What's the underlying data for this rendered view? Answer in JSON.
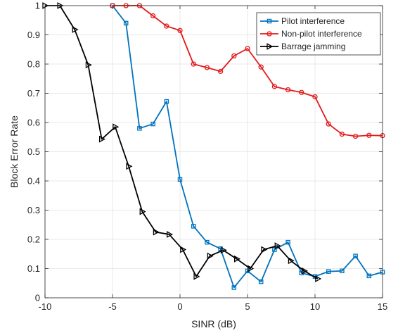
{
  "chart_data": {
    "type": "line",
    "title": "",
    "xlabel": "SINR (dB)",
    "ylabel": "Block Error Rate",
    "xlim": [
      -10,
      15
    ],
    "ylim": [
      0,
      1
    ],
    "xticks": [
      -10,
      -5,
      0,
      5,
      10,
      15
    ],
    "yticks": [
      0,
      0.1,
      0.2,
      0.3,
      0.4,
      0.5,
      0.6,
      0.7,
      0.8,
      0.9,
      1
    ],
    "grid": true,
    "legend_position": "top-right",
    "series": [
      {
        "name": "Pilot interference",
        "color": "#0072BD",
        "marker": "square",
        "points": [
          [
            -5,
            1
          ],
          [
            -4,
            0.94
          ],
          [
            -3,
            0.58
          ],
          [
            -2,
            0.595
          ],
          [
            -1,
            0.672
          ],
          [
            0,
            0.405
          ],
          [
            1,
            0.245
          ],
          [
            2,
            0.19
          ],
          [
            3,
            0.168
          ],
          [
            4,
            0.035
          ],
          [
            5,
            0.092
          ],
          [
            6,
            0.055
          ],
          [
            7,
            0.165
          ],
          [
            8,
            0.19
          ],
          [
            9,
            0.085
          ],
          [
            10,
            0.073
          ],
          [
            11,
            0.09
          ],
          [
            12,
            0.092
          ],
          [
            13,
            0.143
          ],
          [
            14,
            0.075
          ],
          [
            15,
            0.088
          ]
        ]
      },
      {
        "name": "Non-pilot interference",
        "color": "#E31A1C",
        "marker": "circle",
        "points": [
          [
            -5,
            1
          ],
          [
            -4,
            1
          ],
          [
            -3,
            1
          ],
          [
            -2,
            0.965
          ],
          [
            -1,
            0.93
          ],
          [
            0,
            0.915
          ],
          [
            1,
            0.8
          ],
          [
            2,
            0.788
          ],
          [
            3,
            0.775
          ],
          [
            4,
            0.828
          ],
          [
            5,
            0.853
          ],
          [
            6,
            0.79
          ],
          [
            7,
            0.723
          ],
          [
            8,
            0.712
          ],
          [
            9,
            0.703
          ],
          [
            10,
            0.688
          ],
          [
            11,
            0.595
          ],
          [
            12,
            0.56
          ],
          [
            13,
            0.553
          ],
          [
            14,
            0.556
          ],
          [
            15,
            0.555
          ]
        ]
      },
      {
        "name": "Barrage jamming",
        "color": "#000000",
        "marker": "triangle-right",
        "points": [
          [
            -10,
            1
          ],
          [
            -8.9,
            1
          ],
          [
            -7.8,
            0.918
          ],
          [
            -6.8,
            0.797
          ],
          [
            -5.8,
            0.543
          ],
          [
            -4.8,
            0.585
          ],
          [
            -3.8,
            0.45
          ],
          [
            -2.8,
            0.295
          ],
          [
            -1.8,
            0.225
          ],
          [
            -0.8,
            0.217
          ],
          [
            0.2,
            0.165
          ],
          [
            1.2,
            0.073
          ],
          [
            2.2,
            0.143
          ],
          [
            3.2,
            0.163
          ],
          [
            4.2,
            0.133
          ],
          [
            5.2,
            0.1
          ],
          [
            6.2,
            0.165
          ],
          [
            7.2,
            0.178
          ],
          [
            8.2,
            0.127
          ],
          [
            9.2,
            0.092
          ],
          [
            10.2,
            0.065
          ]
        ]
      }
    ]
  }
}
